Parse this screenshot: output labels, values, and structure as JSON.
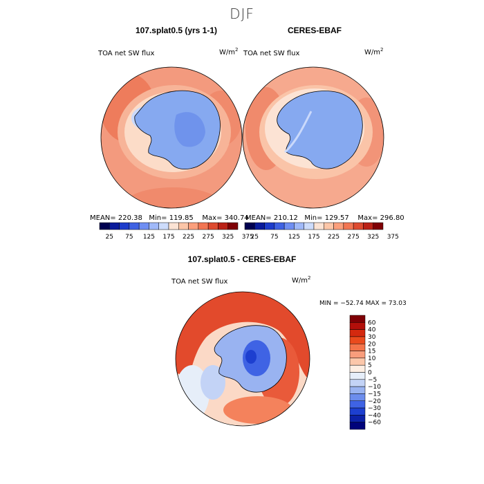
{
  "title": "DJF",
  "panels": [
    {
      "id": "model",
      "title": "107.splat0.5 (yrs 1-1)",
      "variable": "TOA net SW flux",
      "units_base": "W/m",
      "units_exp": "2",
      "stats": {
        "mean_label": "MEAN=",
        "mean": "220.38",
        "min_label": "Min=",
        "min": "119.85",
        "max_label": "Max=",
        "max": "340.74"
      }
    },
    {
      "id": "obs",
      "title": "CERES-EBAF",
      "variable": "TOA net SW flux",
      "units_base": "W/m",
      "units_exp": "2",
      "stats": {
        "mean_label": "MEAN=",
        "mean": "210.12",
        "min_label": "Min=",
        "min": "129.57",
        "max_label": "Max=",
        "max": "296.80"
      }
    },
    {
      "id": "diff",
      "title": "107.splat0.5 - CERES-EBAF",
      "variable": "TOA net SW flux",
      "units_base": "W/m",
      "units_exp": "2",
      "minmax": "MIN = −52.74  MAX =  73.03"
    }
  ],
  "colorbar_top": {
    "colors": [
      "#00004f",
      "#0a1b9b",
      "#1d3ccb",
      "#3f62e3",
      "#6f8ef2",
      "#a0b9f9",
      "#cddcfb",
      "#fbe3d4",
      "#fcc6a8",
      "#fb9f7c",
      "#f27653",
      "#de4b30",
      "#bb2217",
      "#7f0005"
    ],
    "labels": [
      "25",
      "75",
      "125",
      "175",
      "225",
      "275",
      "325",
      "375"
    ]
  },
  "colorbar_diff": {
    "colors": [
      "#7f0005",
      "#b30f0a",
      "#d4290f",
      "#ea4a1d",
      "#f4744a",
      "#f89d7c",
      "#fbc7aa",
      "#fdeee2",
      "#e6eef9",
      "#c3d3f6",
      "#99b3f1",
      "#6c8ded",
      "#3f63e4",
      "#1d3fd0",
      "#0c21a8",
      "#00037a"
    ],
    "labels": [
      "60",
      "40",
      "30",
      "20",
      "15",
      "10",
      "5",
      "0",
      "−5",
      "−10",
      "−15",
      "−20",
      "−30",
      "−40",
      "−60"
    ]
  },
  "colors": {
    "ocean_model": "#f49a80",
    "ocean_obs": "#f7ab90",
    "ice": "#86a9f0",
    "ring": "#fcdcc8",
    "diff_ocean": "#e24a2c"
  }
}
